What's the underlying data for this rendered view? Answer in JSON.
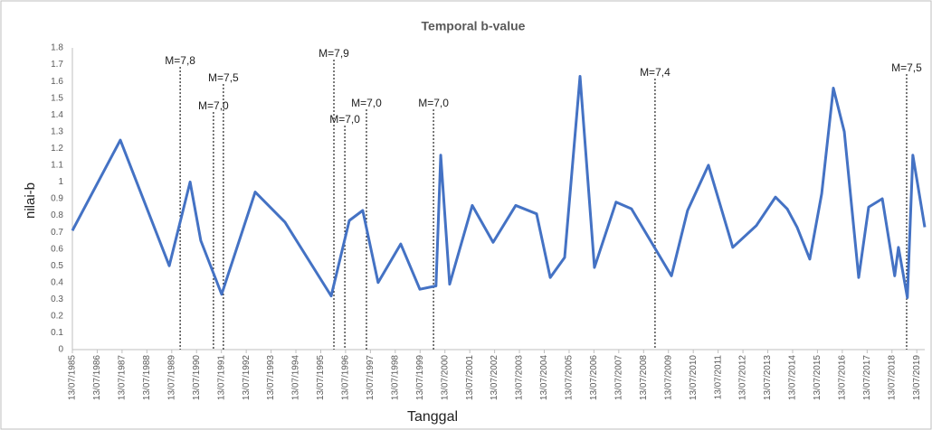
{
  "chart_data": {
    "type": "line",
    "title": "Temporal b-value",
    "xlabel": "Tanggal",
    "ylabel": "nilai-b",
    "color": "#4472c4",
    "x": [
      1985.53,
      1987.46,
      1989.43,
      1990.27,
      1990.7,
      1991.54,
      1992.89,
      1994.09,
      1995.95,
      1996.68,
      1997.22,
      1997.84,
      1998.75,
      1999.52,
      2000.17,
      2000.36,
      2000.72,
      2001.63,
      2002.47,
      2003.38,
      2004.22,
      2004.77,
      2005.35,
      2005.97,
      2006.55,
      2007.42,
      2008.04,
      2009.65,
      2010.3,
      2011.14,
      2012.12,
      2013.07,
      2013.84,
      2014.31,
      2014.71,
      2015.22,
      2015.7,
      2016.17,
      2016.61,
      2017.19,
      2017.59,
      2018.14,
      2018.64,
      2018.79,
      2019.15,
      2019.37,
      2019.85
    ],
    "values": [
      0.71,
      1.25,
      0.5,
      1.0,
      0.65,
      0.33,
      0.94,
      0.76,
      0.32,
      0.77,
      0.83,
      0.4,
      0.63,
      0.36,
      0.38,
      1.16,
      0.39,
      0.86,
      0.64,
      0.86,
      0.81,
      0.43,
      0.55,
      1.63,
      0.49,
      0.88,
      0.84,
      0.44,
      0.83,
      1.1,
      0.61,
      0.74,
      0.91,
      0.84,
      0.73,
      0.54,
      0.93,
      1.56,
      1.3,
      0.43,
      0.85,
      0.9,
      0.44,
      0.61,
      0.31,
      1.16,
      0.73
    ],
    "xlim": [
      1985.53,
      2019.85
    ],
    "xticks": [
      {
        "value": 1985.53,
        "label": "13/07/1985"
      },
      {
        "value": 1986.53,
        "label": "13/07/1986"
      },
      {
        "value": 1987.53,
        "label": "13/07/1987"
      },
      {
        "value": 1988.53,
        "label": "13/07/1988"
      },
      {
        "value": 1989.53,
        "label": "13/07/1989"
      },
      {
        "value": 1990.53,
        "label": "13/07/1990"
      },
      {
        "value": 1991.53,
        "label": "13/07/1991"
      },
      {
        "value": 1992.53,
        "label": "13/07/1992"
      },
      {
        "value": 1993.53,
        "label": "13/07/1993"
      },
      {
        "value": 1994.53,
        "label": "13/07/1994"
      },
      {
        "value": 1995.53,
        "label": "13/07/1995"
      },
      {
        "value": 1996.53,
        "label": "13/07/1996"
      },
      {
        "value": 1997.53,
        "label": "13/07/1997"
      },
      {
        "value": 1998.53,
        "label": "13/07/1998"
      },
      {
        "value": 1999.53,
        "label": "13/07/1999"
      },
      {
        "value": 2000.53,
        "label": "13/07/2000"
      },
      {
        "value": 2001.53,
        "label": "13/07/2001"
      },
      {
        "value": 2002.53,
        "label": "13/07/2002"
      },
      {
        "value": 2003.53,
        "label": "13/07/2003"
      },
      {
        "value": 2004.53,
        "label": "13/07/2004"
      },
      {
        "value": 2005.53,
        "label": "13/07/2005"
      },
      {
        "value": 2006.53,
        "label": "13/07/2006"
      },
      {
        "value": 2007.53,
        "label": "13/07/2007"
      },
      {
        "value": 2008.53,
        "label": "13/07/2008"
      },
      {
        "value": 2009.53,
        "label": "13/07/2009"
      },
      {
        "value": 2010.53,
        "label": "13/07/2010"
      },
      {
        "value": 2011.53,
        "label": "13/07/2011"
      },
      {
        "value": 2012.53,
        "label": "13/07/2012"
      },
      {
        "value": 2013.53,
        "label": "13/07/2013"
      },
      {
        "value": 2014.53,
        "label": "13/07/2014"
      },
      {
        "value": 2015.53,
        "label": "13/07/2015"
      },
      {
        "value": 2016.53,
        "label": "13/07/2016"
      },
      {
        "value": 2017.53,
        "label": "13/07/2017"
      },
      {
        "value": 2018.53,
        "label": "13/07/2018"
      },
      {
        "value": 2019.53,
        "label": "13/07/2019"
      }
    ],
    "ylim": [
      0,
      1.8
    ],
    "yticks": [
      0,
      0.1,
      0.2,
      0.3,
      0.4,
      0.5,
      0.6,
      0.7,
      0.8,
      0.9,
      1,
      1.1,
      1.2,
      1.3,
      1.4,
      1.5,
      1.6,
      1.7,
      1.8
    ],
    "grid": false,
    "annotations": [
      {
        "text": "M=7,8",
        "x": 1989.87
      },
      {
        "text": "M=7,0",
        "x": 1991.21
      },
      {
        "text": "M=7,5",
        "x": 1991.61
      },
      {
        "text": "M=7,9",
        "x": 1996.06
      },
      {
        "text": "M=7,0",
        "x": 1996.5
      },
      {
        "text": "M=7,0",
        "x": 1997.37
      },
      {
        "text": "M=7,0",
        "x": 2000.07
      },
      {
        "text": "M=7,4",
        "x": 2008.99
      },
      {
        "text": "M=7,5",
        "x": 2019.12
      }
    ]
  }
}
